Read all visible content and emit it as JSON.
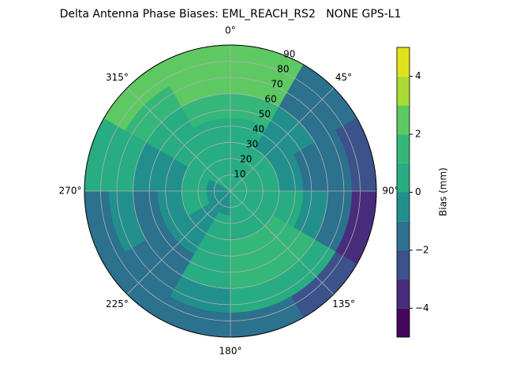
{
  "chart_data": {
    "type": "polar-contour",
    "title": "Delta Antenna Phase Biases: EML_REACH_RS2   NONE GPS-L1",
    "colorbar_label": "Bias (mm)",
    "azimuth_edges": [
      0,
      30,
      60,
      90,
      120,
      150,
      180,
      210,
      240,
      270,
      300,
      330,
      360
    ],
    "zenith_edges": [
      0,
      15,
      30,
      45,
      60,
      75,
      90
    ],
    "values": [
      [
        0.5,
        0.5,
        0.5,
        1.5,
        2.5,
        2.5
      ],
      [
        0.5,
        0.5,
        -0.5,
        -0.5,
        -1.5,
        -1.5
      ],
      [
        0.5,
        0.5,
        -0.5,
        -1.5,
        -1.5,
        -2.5
      ],
      [
        0.5,
        0.5,
        0.5,
        -0.5,
        -1.5,
        -3.5
      ],
      [
        0.5,
        0.5,
        1.5,
        1.5,
        0.5,
        -2.5
      ],
      [
        0.5,
        0.5,
        1.5,
        1.5,
        0.5,
        -1.5
      ],
      [
        -0.5,
        0.5,
        0.5,
        0.5,
        -0.5,
        -1.5
      ],
      [
        -0.5,
        -0.5,
        -0.5,
        -1.5,
        -1.5,
        -1.5
      ],
      [
        -0.5,
        0.5,
        -0.5,
        -1.5,
        -0.5,
        -1.5
      ],
      [
        -0.5,
        0.5,
        -0.5,
        -0.5,
        0.5,
        0.5
      ],
      [
        0.5,
        0.5,
        0.5,
        0.5,
        1.5,
        2.5
      ],
      [
        0.5,
        0.5,
        0.5,
        1.5,
        2.5,
        2.5
      ]
    ],
    "levels": [
      -5,
      -4,
      -3,
      -2,
      -1,
      0,
      1,
      2,
      3,
      4,
      5
    ],
    "colors": [
      "#46085c",
      "#472d7b",
      "#3b528b",
      "#2c718e",
      "#21908d",
      "#27ad81",
      "#35b779",
      "#5ec962",
      "#aadc32",
      "#e0e31c"
    ],
    "rlim": [
      0,
      90
    ],
    "rticks": [
      10,
      20,
      30,
      40,
      50,
      60,
      70,
      80,
      90
    ],
    "thetaticks": [
      {
        "value": 0,
        "label": "0°"
      },
      {
        "value": 45,
        "label": "45°"
      },
      {
        "value": 90,
        "label": "90°"
      },
      {
        "value": 135,
        "label": "135°"
      },
      {
        "value": 180,
        "label": "180°"
      },
      {
        "value": 225,
        "label": "225°"
      },
      {
        "value": 270,
        "label": "270°"
      },
      {
        "value": 315,
        "label": "315°"
      }
    ],
    "colorbar_ticks": [
      {
        "value": -4,
        "label": "−4"
      },
      {
        "value": -2,
        "label": "−2"
      },
      0,
      2,
      4
    ],
    "grid": true
  }
}
